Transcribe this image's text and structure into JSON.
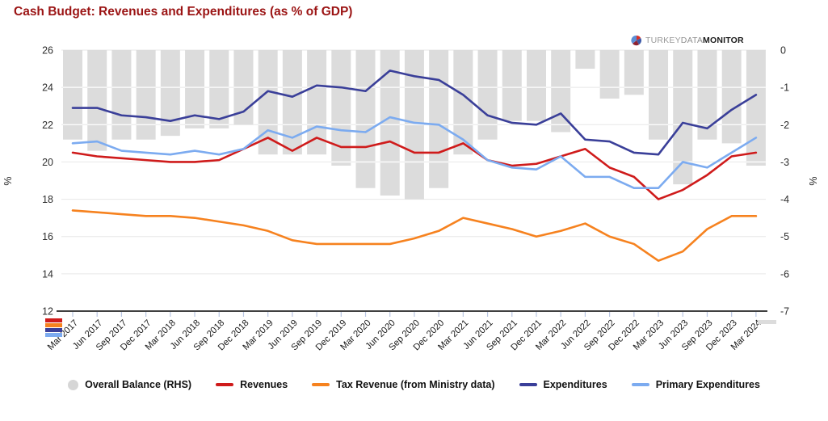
{
  "title": "Cash Budget: Revenues and Expenditures (as % of GDP)",
  "logo": {
    "turkey": "TURKEY",
    "data": "DATA",
    "monitor": "MONITOR"
  },
  "chart_data": {
    "type": "combo-bar-line",
    "title": "Cash Budget: Revenues and Expenditures (as % of GDP)",
    "grid": true,
    "legend_position": "bottom",
    "categories": [
      "Mar 2017",
      "Jun 2017",
      "Sep 2017",
      "Dec 2017",
      "Mar 2018",
      "Jun 2018",
      "Sep 2018",
      "Dec 2018",
      "Mar 2019",
      "Jun 2019",
      "Sep 2019",
      "Dec 2019",
      "Mar 2020",
      "Jun 2020",
      "Sep 2020",
      "Dec 2020",
      "Mar 2021",
      "Jun 2021",
      "Sep 2021",
      "Dec 2021",
      "Mar 2022",
      "Jun 2022",
      "Sep 2022",
      "Dec 2022",
      "Mar 2023",
      "Jun 2023",
      "Sep 2023",
      "Dec 2023",
      "Mar 2024"
    ],
    "left_axis": {
      "label": "%",
      "range": [
        12,
        26
      ],
      "ticks": [
        26,
        24,
        22,
        20,
        18,
        16,
        14,
        12
      ]
    },
    "right_axis": {
      "label": "%",
      "range": [
        -7,
        0
      ],
      "ticks": [
        0,
        -1,
        -2,
        -3,
        -4,
        -5,
        -6,
        -7
      ]
    },
    "series": [
      {
        "name": "Overall Balance (RHS)",
        "type": "bar",
        "axis": "right",
        "color": "#dcdcdc",
        "values": [
          -2.4,
          -2.7,
          -2.4,
          -2.4,
          -2.3,
          -2.1,
          -2.1,
          -2.0,
          -2.8,
          -2.8,
          -2.8,
          -3.1,
          -3.7,
          -3.9,
          -4.0,
          -3.7,
          -2.8,
          -2.4,
          -1.9,
          -1.9,
          -2.2,
          -0.5,
          -1.3,
          -1.2,
          -2.4,
          -3.6,
          -2.4,
          -2.5,
          -3.1
        ]
      },
      {
        "name": "Revenues",
        "type": "line",
        "axis": "left",
        "color": "#cf1b1b",
        "values": [
          20.5,
          20.3,
          20.2,
          20.1,
          20.0,
          20.0,
          20.1,
          20.7,
          21.3,
          20.6,
          21.3,
          20.8,
          20.8,
          21.1,
          20.5,
          20.5,
          21.0,
          20.1,
          19.8,
          19.9,
          20.3,
          20.7,
          19.7,
          19.2,
          18.0,
          18.5,
          19.3,
          20.3,
          20.5
        ]
      },
      {
        "name": "Tax Revenue (from Ministry data)",
        "type": "line",
        "axis": "left",
        "color": "#f6821f",
        "values": [
          17.4,
          17.3,
          17.2,
          17.1,
          17.1,
          17.0,
          16.8,
          16.6,
          16.3,
          15.8,
          15.6,
          15.6,
          15.6,
          15.6,
          15.9,
          16.3,
          17.0,
          16.7,
          16.4,
          16.0,
          16.3,
          16.7,
          16.0,
          15.6,
          14.7,
          15.2,
          16.4,
          17.1,
          17.1
        ]
      },
      {
        "name": "Expenditures",
        "type": "line",
        "axis": "left",
        "color": "#3a3f99",
        "values": [
          22.9,
          22.9,
          22.5,
          22.4,
          22.2,
          22.5,
          22.3,
          22.7,
          23.8,
          23.5,
          24.1,
          24.0,
          23.8,
          24.9,
          24.6,
          24.4,
          23.6,
          22.5,
          22.1,
          22.0,
          22.6,
          21.2,
          21.1,
          20.5,
          20.4,
          22.1,
          21.8,
          22.8,
          23.6
        ]
      },
      {
        "name": "Primary Expenditures",
        "type": "line",
        "axis": "left",
        "color": "#7cabf0",
        "values": [
          21.0,
          21.1,
          20.6,
          20.5,
          20.4,
          20.6,
          20.4,
          20.7,
          21.7,
          21.3,
          21.9,
          21.7,
          21.6,
          22.4,
          22.1,
          22.0,
          21.2,
          20.1,
          19.7,
          19.6,
          20.3,
          19.2,
          19.2,
          18.6,
          18.6,
          20.0,
          19.7,
          20.5,
          21.3
        ]
      }
    ],
    "colors": {
      "gridline": "#e7e7e7",
      "axis_line": "#000000",
      "tick_mark": "#b9c6e3",
      "axis_text": "#2d2d2d",
      "title": "#9b1414"
    }
  }
}
